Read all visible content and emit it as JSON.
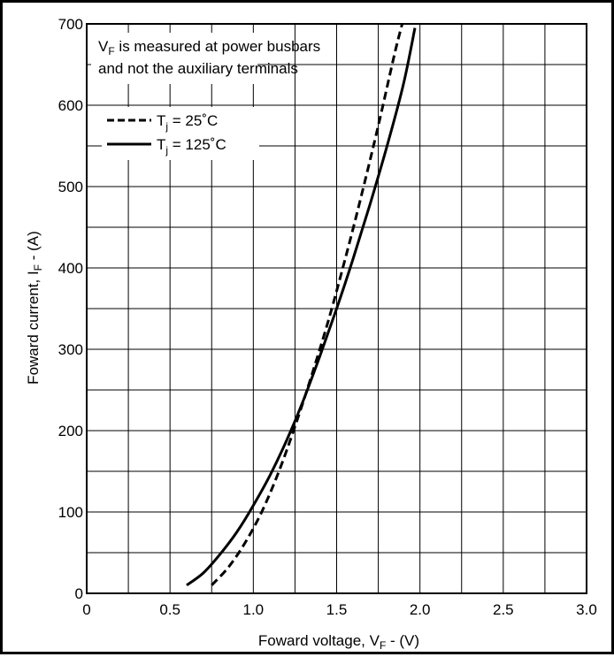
{
  "chart_data": {
    "type": "line",
    "xlabel": {
      "main": "Foward voltage, V",
      "sub": "F",
      "suffix": " - (V)"
    },
    "ylabel": {
      "main": "Foward current, I",
      "sub": "F",
      "suffix": " - (A)"
    },
    "xlim": [
      0,
      3.0
    ],
    "ylim": [
      0,
      700
    ],
    "x_ticks": [
      "0",
      "0.5",
      "1.0",
      "1.5",
      "2.0",
      "2.5",
      "3.0"
    ],
    "x_tick_values": [
      0,
      0.5,
      1.0,
      1.5,
      2.0,
      2.5,
      3.0
    ],
    "y_ticks": [
      "0",
      "100",
      "200",
      "300",
      "400",
      "500",
      "600",
      "700"
    ],
    "y_tick_values": [
      0,
      100,
      200,
      300,
      400,
      500,
      600,
      700
    ],
    "grid": {
      "x_step": 0.25,
      "y_step": 50,
      "on": true
    },
    "annotation": {
      "line1_main": "V",
      "line1_sub": "F",
      "line1_rest": " is measured at power busbars",
      "line2": "and not the auxiliary terminals"
    },
    "legend_placement": "top-left",
    "series": [
      {
        "name_main": "T",
        "name_sub": "j",
        "name_rest": " = 25˚C",
        "style": "dashed",
        "x": [
          0.75,
          0.85,
          0.95,
          1.05,
          1.15,
          1.25,
          1.35,
          1.45,
          1.55,
          1.65,
          1.75,
          1.85,
          1.9
        ],
        "y": [
          10,
          32,
          62,
          100,
          148,
          205,
          268,
          335,
          410,
          490,
          575,
          665,
          705
        ]
      },
      {
        "name_main": "T",
        "name_sub": "j",
        "name_rest": " = 125˚C",
        "style": "solid",
        "x": [
          0.6,
          0.7,
          0.8,
          0.9,
          1.0,
          1.1,
          1.2,
          1.3,
          1.4,
          1.5,
          1.6,
          1.7,
          1.8,
          1.9,
          1.97
        ],
        "y": [
          10,
          25,
          48,
          75,
          108,
          145,
          188,
          237,
          292,
          350,
          412,
          478,
          548,
          625,
          695
        ]
      }
    ]
  }
}
